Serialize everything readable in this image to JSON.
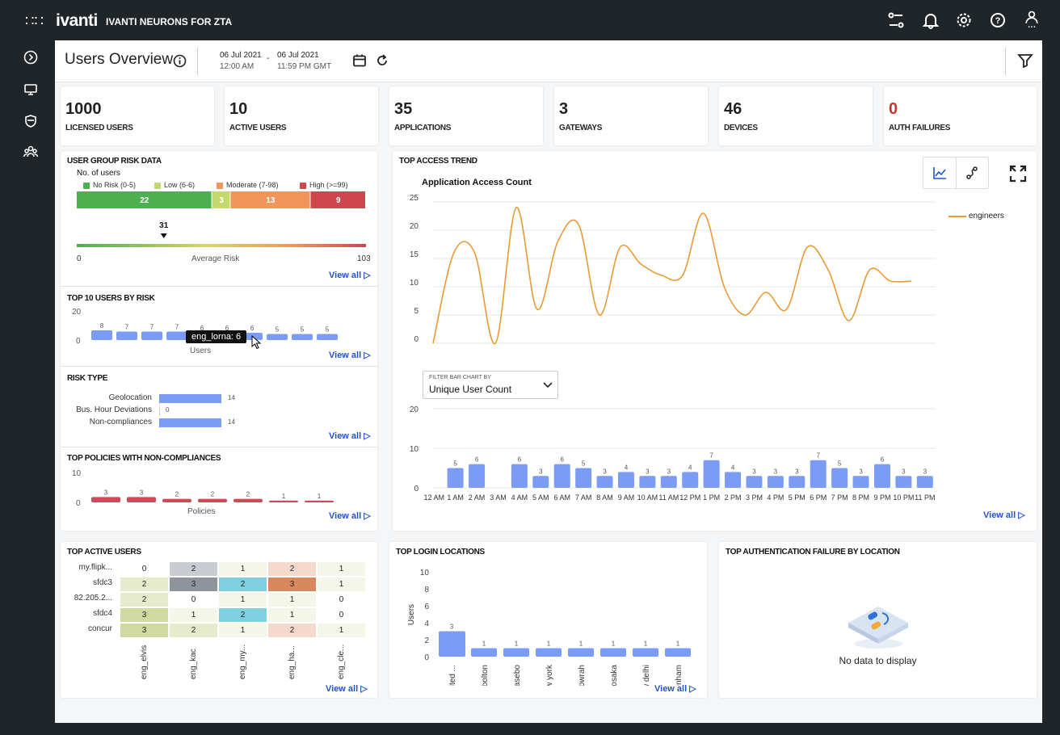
{
  "topbar": {
    "logo": "ivanti",
    "product": "IVANTI NEURONS FOR ZTA"
  },
  "header": {
    "title": "Users Overview",
    "date_from": "06 Jul 2021",
    "time_from": "12:00 AM",
    "date_sep": "-",
    "date_to": "06 Jul 2021",
    "time_to": "11:59 PM GMT"
  },
  "kpis": [
    {
      "value": "1000",
      "label": "LICENSED USERS",
      "color": "#222222"
    },
    {
      "value": "10",
      "label": "ACTIVE USERS",
      "color": "#222222"
    },
    {
      "value": "35",
      "label": "APPLICATIONS",
      "color": "#222222"
    },
    {
      "value": "3",
      "label": "GATEWAYS",
      "color": "#222222"
    },
    {
      "value": "46",
      "label": "DEVICES",
      "color": "#222222"
    },
    {
      "value": "0",
      "label": "AUTH FAILURES",
      "color": "#c0392b"
    }
  ],
  "risk": {
    "title": "USER GROUP RISK DATA",
    "subtitle": "No. of users",
    "legend": [
      {
        "label": "No Risk (0-5)",
        "color": "#4caf50"
      },
      {
        "label": "Low (6-6)",
        "color": "#c5d86d"
      },
      {
        "label": "Moderate (7-98)",
        "color": "#f0965a"
      },
      {
        "label": "High (>=99)",
        "color": "#d0464f"
      }
    ],
    "segments": [
      22,
      3,
      13,
      9
    ],
    "avg_value": "31",
    "avg_risk": 31,
    "min": "0",
    "max": "103",
    "avg_label": "Average Risk",
    "view_all": "View all"
  },
  "top_users": {
    "title": "TOP 10 USERS BY RISK",
    "ymax": "20",
    "ymin": "0",
    "values": [
      8,
      7,
      7,
      7,
      6,
      6,
      6,
      5,
      5,
      5
    ],
    "xlabel": "Users",
    "tooltip": "eng_lorna: 6",
    "view_all": "View all"
  },
  "risk_type": {
    "title": "RISK TYPE",
    "items": [
      {
        "label": "Geolocation",
        "value": 14
      },
      {
        "label": "Bus. Hour Deviations",
        "value": 0
      },
      {
        "label": "Non-compliances",
        "value": 14
      }
    ],
    "view_all": "View all"
  },
  "policies": {
    "title": "TOP POLICIES WITH NON-COMPLIANCES",
    "ymax": "10",
    "ymin": "0",
    "values": [
      3,
      3,
      2,
      2,
      2,
      1,
      1
    ],
    "xlabel": "Policies",
    "view_all": "View all"
  },
  "trend": {
    "title": "TOP ACCESS TREND",
    "line_title": "Application Access Count",
    "legend": "engineers",
    "filter_label": "FILTER BAR CHART BY",
    "filter_value": "Unique User Count",
    "view_all": "View all"
  },
  "chart_data": [
    {
      "type": "line",
      "title": "Application Access Count",
      "series": [
        {
          "name": "engineers",
          "values": [
            0,
            16,
            16,
            0,
            24,
            6,
            18,
            21,
            5,
            17,
            14,
            12,
            12,
            23,
            10,
            5,
            9,
            6,
            17,
            13,
            4,
            13,
            11,
            11
          ]
        }
      ],
      "ylim": [
        0,
        25
      ],
      "yticks": [
        "25",
        "20",
        "15",
        "10",
        "5",
        "0"
      ]
    },
    {
      "type": "bar",
      "categories": [
        "12 AM",
        "1 AM",
        "2 AM",
        "3 AM",
        "4 AM",
        "5 AM",
        "6 AM",
        "7 AM",
        "8 AM",
        "9 AM",
        "10 AM",
        "11 AM",
        "12 PM",
        "1 PM",
        "2 PM",
        "3 PM",
        "4 PM",
        "5 PM",
        "6 PM",
        "7 PM",
        "8 PM",
        "9 PM",
        "10 PM",
        "11 PM"
      ],
      "values": [
        null,
        5,
        6,
        null,
        6,
        3,
        6,
        5,
        3,
        4,
        3,
        3,
        4,
        7,
        4,
        3,
        3,
        3,
        7,
        5,
        3,
        6,
        3,
        3
      ],
      "ylim": [
        0,
        20
      ],
      "yticks": [
        "20",
        "10",
        "0"
      ]
    }
  ],
  "active_users": {
    "title": "TOP ACTIVE USERS",
    "rows": [
      "my.flipk...",
      "sfdc3",
      "82.205.2...",
      "sfdc4",
      "concur"
    ],
    "cols": [
      "eng_elvis",
      "eng_kac",
      "eng_my...",
      "eng_ha...",
      "eng_cle..."
    ],
    "values": [
      [
        0,
        2,
        1,
        2,
        1
      ],
      [
        2,
        3,
        2,
        3,
        1
      ],
      [
        2,
        0,
        1,
        1,
        0
      ],
      [
        3,
        1,
        2,
        1,
        0
      ],
      [
        3,
        2,
        1,
        2,
        1
      ]
    ],
    "view_all": "View all"
  },
  "login": {
    "title": "TOP LOGIN LOCATIONS",
    "ylabel": "Users",
    "yticks": [
      "10",
      "8",
      "6",
      "4",
      "2",
      "0"
    ],
    "ymax": 10,
    "categories": [
      "united ...",
      "bolton",
      "sasebo",
      "new york",
      "howrah",
      "osaka",
      "new delhi",
      "tottenham"
    ],
    "values": [
      3,
      1,
      1,
      1,
      1,
      1,
      1,
      1
    ],
    "view_all": "View all"
  },
  "authfail": {
    "title": "TOP AUTHENTICATION FAILURE BY LOCATION",
    "empty": "No data to display"
  },
  "colors": {
    "accent": "#2253c7",
    "bar": "#7b9cf5",
    "policy_bar": "#cf4a57",
    "line": "#e99a34"
  }
}
